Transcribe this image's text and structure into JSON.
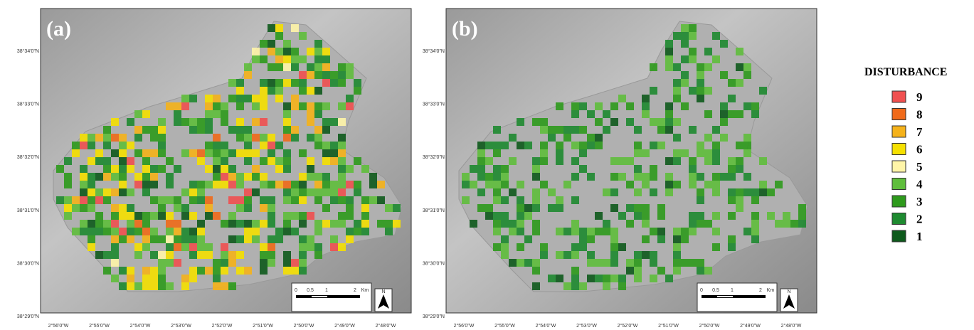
{
  "panels": [
    {
      "label": "(a)",
      "lat_labels": [
        "38°34'0\"N",
        "38°33'0\"N",
        "38°32'0\"N",
        "38°31'0\"N",
        "38°30'0\"N",
        "38°29'0\"N"
      ],
      "lon_labels": [
        "2°56'0\"W",
        "2°55'0\"W",
        "2°54'0\"W",
        "2°53'0\"W",
        "2°52'0\"W",
        "2°51'0\"W",
        "2°50'0\"W",
        "2°49'0\"W",
        "2°48'0\"W"
      ],
      "scale_labels": [
        "0",
        "0.5",
        "1",
        "2",
        "Km"
      ],
      "north": "N"
    },
    {
      "label": "(b)",
      "lat_labels": [
        "38°34'0\"N",
        "38°33'0\"N",
        "38°32'0\"N",
        "38°31'0\"N",
        "38°30'0\"N",
        "38°29'0\"N"
      ],
      "lon_labels": [
        "2°56'0\"W",
        "2°55'0\"W",
        "2°54'0\"W",
        "2°53'0\"W",
        "2°52'0\"W",
        "2°51'0\"W",
        "2°50'0\"W",
        "2°49'0\"W",
        "2°48'0\"W"
      ],
      "scale_labels": [
        "0",
        "0.5",
        "1",
        "2",
        "Km"
      ],
      "north": "N"
    }
  ],
  "legend": {
    "title": "DISTURBANCE",
    "items": [
      {
        "label": "9",
        "color": "#f05050"
      },
      {
        "label": "8",
        "color": "#f06a1a"
      },
      {
        "label": "7",
        "color": "#f5b21a"
      },
      {
        "label": "6",
        "color": "#f5e000"
      },
      {
        "label": "5",
        "color": "#fff5a8"
      },
      {
        "label": "4",
        "color": "#5fbe3c"
      },
      {
        "label": "3",
        "color": "#2e9a1c"
      },
      {
        "label": "2",
        "color": "#1e8a30"
      },
      {
        "label": "1",
        "color": "#0e5a1c"
      }
    ]
  }
}
